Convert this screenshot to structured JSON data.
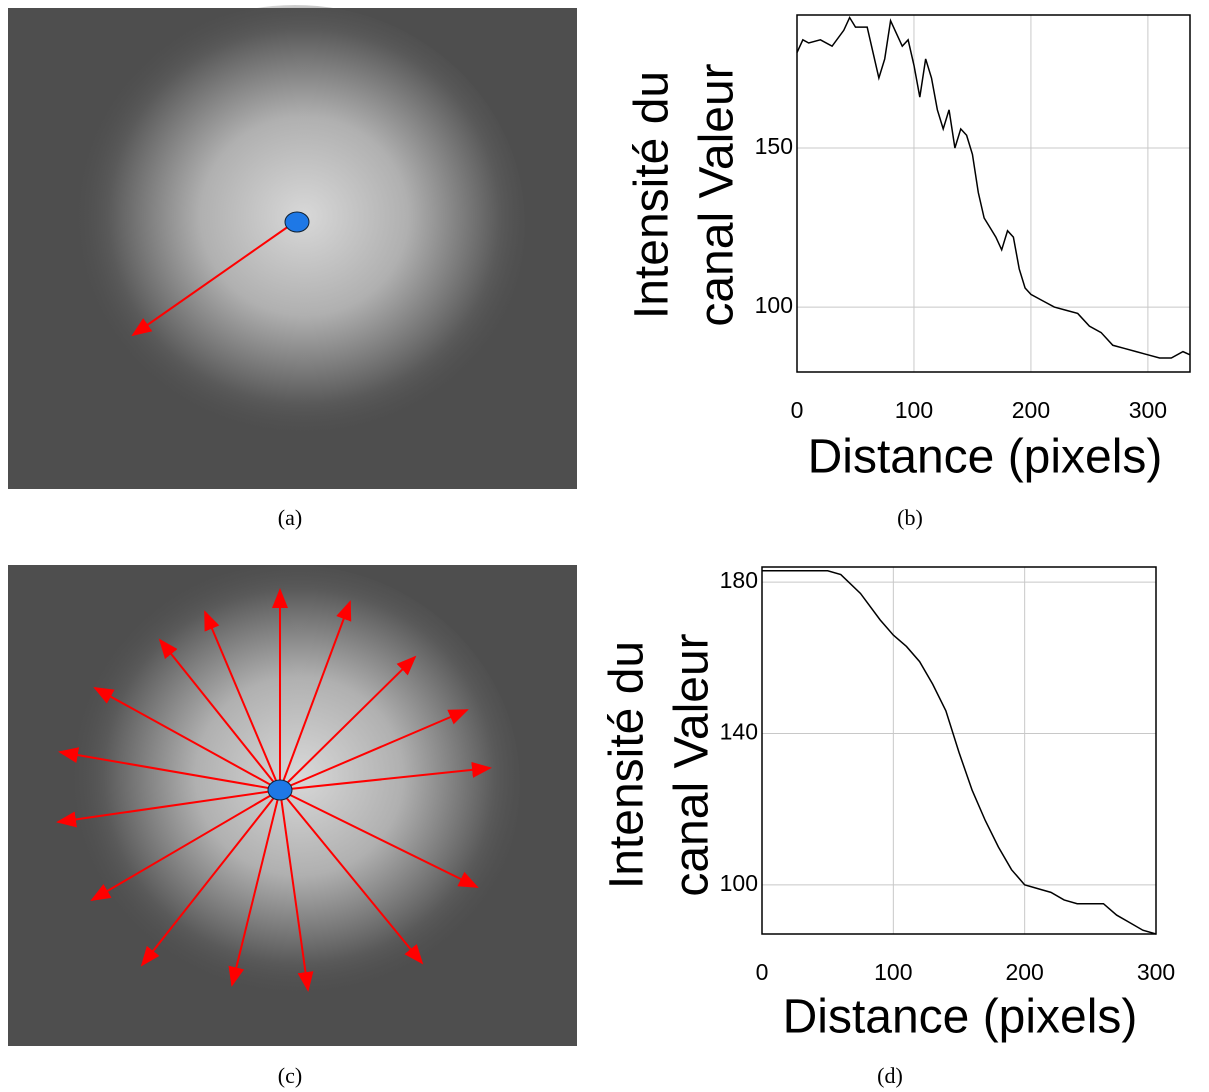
{
  "captions": [
    "(a)",
    "(b)",
    "(c)",
    "(d)"
  ],
  "chart_data": [
    {
      "type": "line",
      "xlabel": "Distance (pixels)",
      "ylabel": [
        "Intensité du",
        "canal Valeur"
      ],
      "x": [
        0,
        5,
        10,
        20,
        30,
        40,
        45,
        50,
        60,
        65,
        70,
        75,
        80,
        85,
        90,
        95,
        100,
        105,
        110,
        115,
        120,
        125,
        130,
        135,
        140,
        145,
        150,
        155,
        160,
        165,
        170,
        175,
        180,
        185,
        190,
        195,
        200,
        210,
        220,
        230,
        240,
        250,
        260,
        270,
        280,
        290,
        300,
        310,
        320,
        330,
        336
      ],
      "series": [
        {
          "color": "#000000",
          "values": [
            180,
            184,
            183,
            184,
            182,
            187,
            191,
            188,
            188,
            180,
            172,
            178,
            190,
            186,
            182,
            184,
            176,
            166,
            178,
            172,
            162,
            156,
            162,
            150,
            156,
            154,
            148,
            136,
            128,
            125,
            122,
            118,
            124,
            122,
            112,
            106,
            104,
            102,
            100,
            99,
            98,
            94,
            92,
            88,
            87,
            86,
            85,
            84,
            84,
            86,
            85
          ]
        }
      ],
      "xlim": [
        0,
        336
      ],
      "ylim": [
        79.6,
        191.8
      ],
      "xticks": [
        0,
        100,
        200,
        300
      ],
      "yticks": [
        100,
        150
      ],
      "grid": true
    },
    {
      "type": "line",
      "xlabel": "Distance (pixels)",
      "ylabel": [
        "Intensité du",
        "canal Valeur"
      ],
      "x": [
        0,
        25,
        50,
        60,
        75,
        90,
        100,
        110,
        120,
        130,
        140,
        150,
        160,
        170,
        180,
        190,
        200,
        210,
        220,
        230,
        240,
        250,
        260,
        270,
        280,
        290,
        300
      ],
      "series": [
        {
          "color": "#000000",
          "values": [
            183,
            183,
            183,
            182,
            177,
            170,
            166,
            163,
            159,
            153,
            146,
            135,
            125,
            117,
            110,
            104,
            100,
            99,
            98,
            96,
            95,
            95,
            95,
            92,
            90,
            88,
            87
          ]
        }
      ],
      "xlim": [
        0,
        300
      ],
      "ylim": [
        87,
        184
      ],
      "xticks": [
        0,
        100,
        200,
        300
      ],
      "yticks": [
        100,
        140,
        180
      ],
      "grid": true
    }
  ]
}
